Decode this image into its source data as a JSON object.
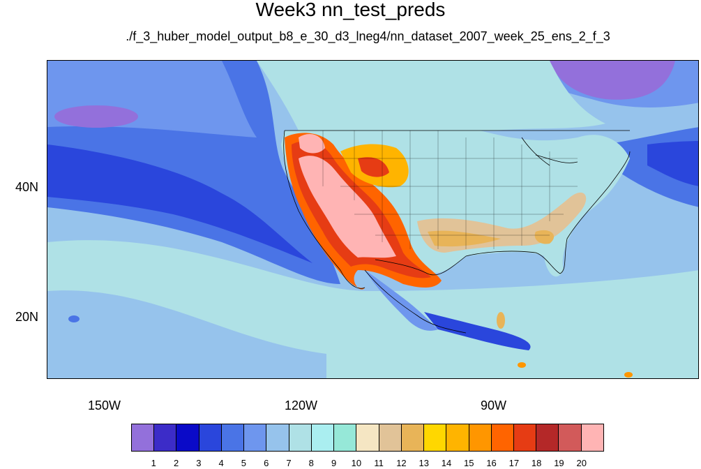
{
  "title": "Week3 nn_test_preds",
  "subtitle": "./f_3_huber_model_output_b8_e_30_d3_lneg4/nn_dataset_2007_week_25_ens_2_f_3",
  "axes": {
    "x_ticks": [
      "150W",
      "120W",
      "90W"
    ],
    "y_ticks": [
      "40N",
      "20N"
    ]
  },
  "colorbar": {
    "colors": [
      "#9370db",
      "#3c2cc8",
      "#0a0ac8",
      "#2a46dc",
      "#4a74e6",
      "#6e96ee",
      "#96c3ec",
      "#afe1e6",
      "#aaeef0",
      "#96e8d8",
      "#f5e6c3",
      "#e1c398",
      "#e8b458",
      "#ffd700",
      "#ffb400",
      "#ff9600",
      "#ff6400",
      "#e63c14",
      "#b42828",
      "#d25a5a",
      "#ffb4b4"
    ],
    "labels": [
      "1",
      "2",
      "3",
      "4",
      "5",
      "6",
      "7",
      "8",
      "9",
      "10",
      "11",
      "12",
      "13",
      "14",
      "15",
      "16",
      "17",
      "18",
      "19",
      "20"
    ]
  }
}
